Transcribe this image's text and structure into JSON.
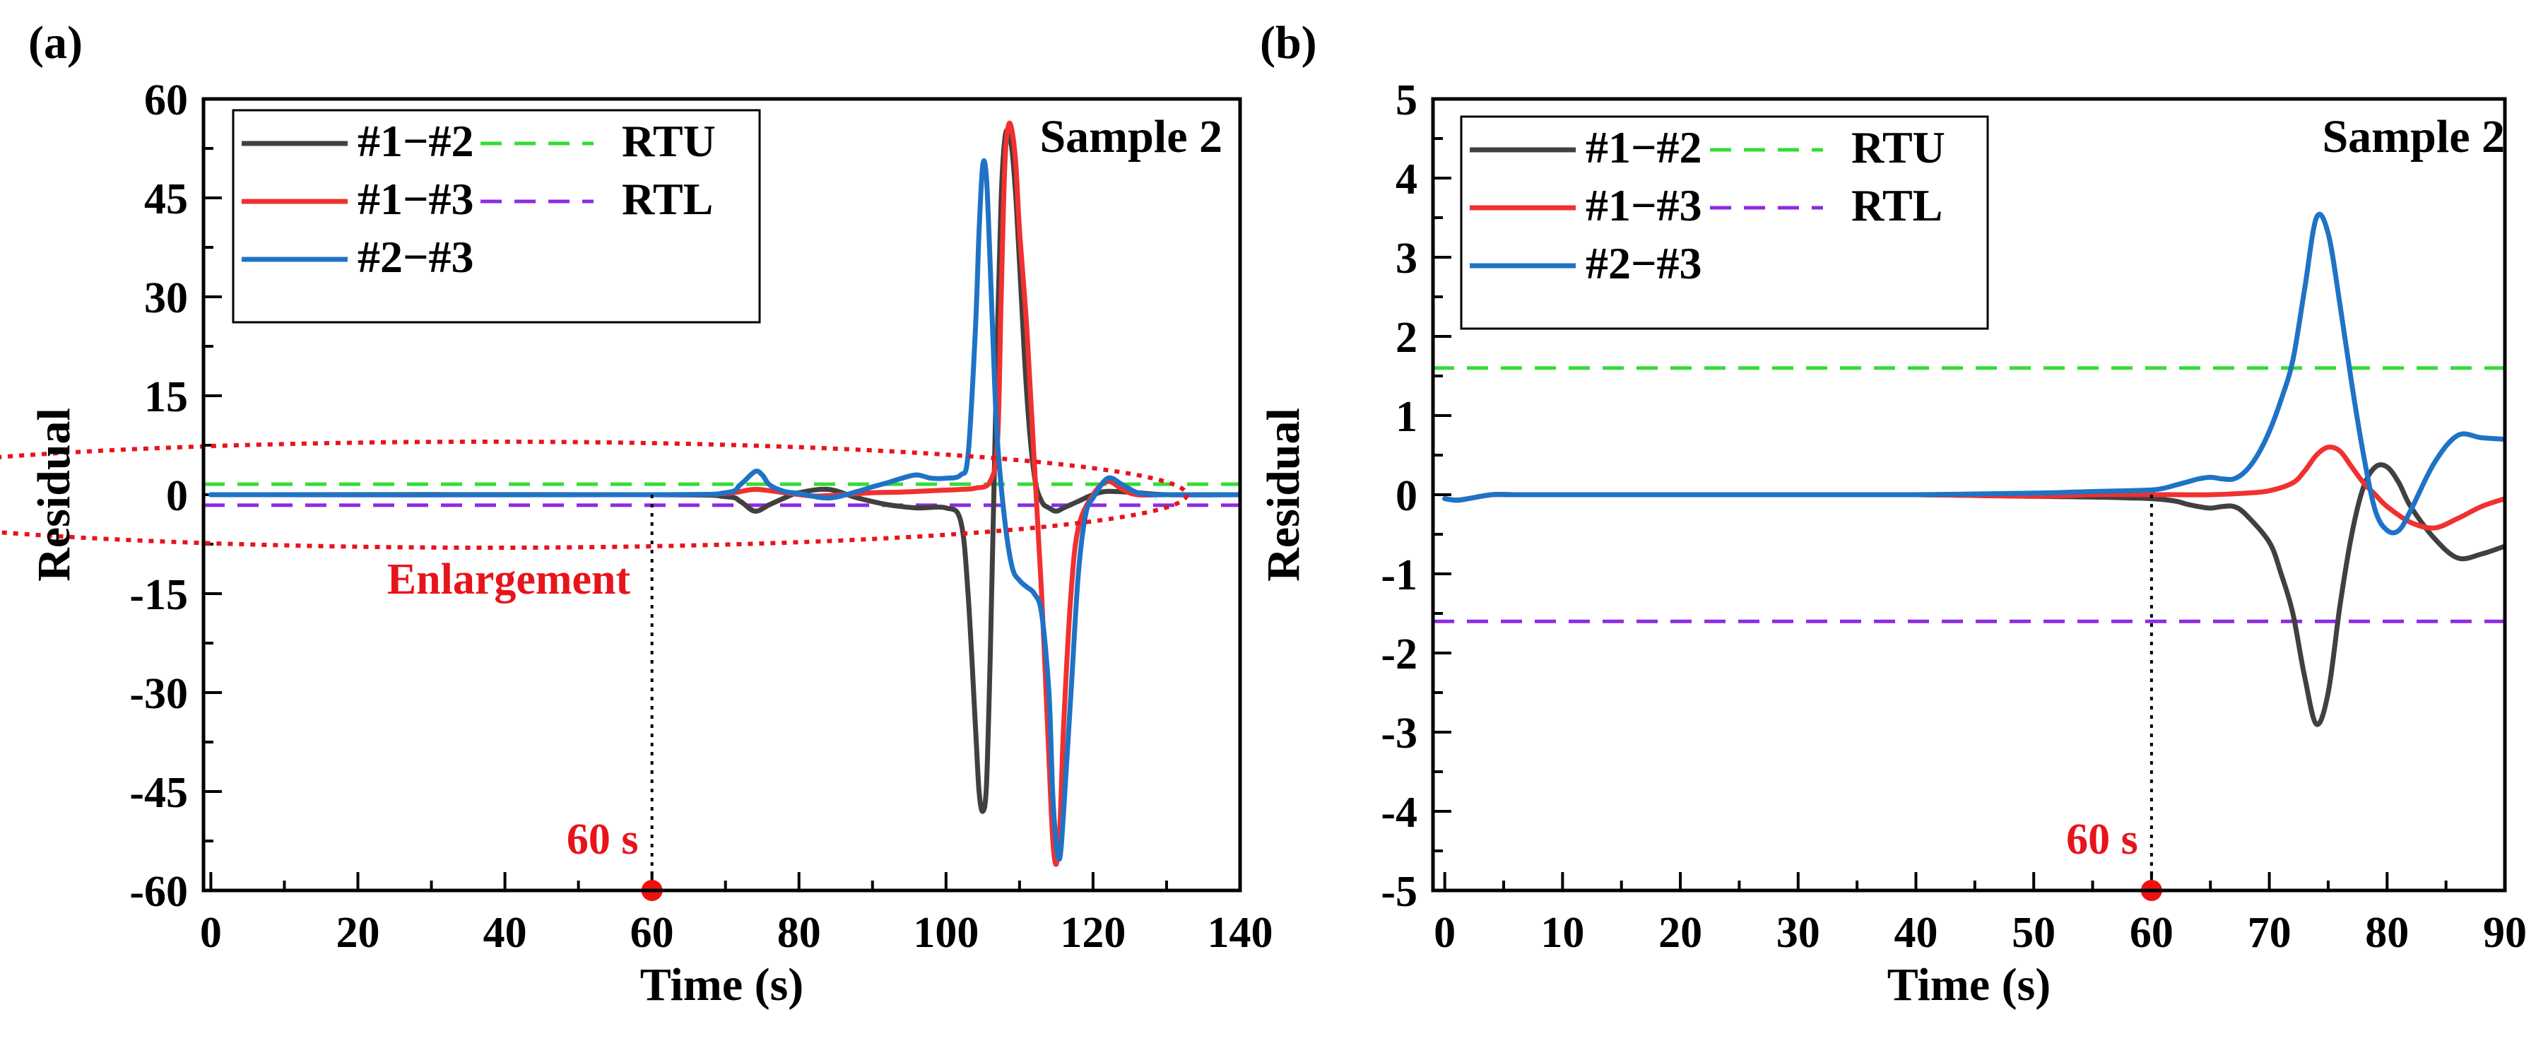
{
  "chart_data": [
    {
      "type": "line",
      "panel_label": "(a)",
      "title": "Sample 2",
      "xlabel": "Time (s)",
      "ylabel": "Residual",
      "xlim": [
        -1,
        140
      ],
      "ylim": [
        -60,
        60
      ],
      "xticks": [
        0,
        20,
        40,
        60,
        80,
        100,
        120,
        140
      ],
      "yticks": [
        60,
        45,
        30,
        15,
        0,
        -15,
        -30,
        -45,
        -60
      ],
      "tick_labels_x": [
        "0",
        "20",
        "40",
        "60",
        "80",
        "100",
        "120",
        "140"
      ],
      "tick_labels_y": [
        "60",
        "45",
        "30",
        "15",
        "0",
        "-15",
        "-30",
        "-45",
        "-60"
      ],
      "legend": [
        "#1−#2",
        "#1−#3",
        "#2−#3",
        "RTU",
        "RTL"
      ],
      "series": [
        {
          "name": "#1−#2",
          "color": "#404040",
          "x": [
            0,
            60,
            70,
            72,
            74,
            76,
            78,
            80,
            84,
            88,
            92,
            96,
            100,
            102,
            103,
            104,
            104.5,
            105,
            105.5,
            106,
            106.5,
            107,
            107.5,
            108,
            108.5,
            109,
            109.5,
            110,
            111,
            112,
            113,
            114,
            115,
            116,
            117,
            118,
            120,
            122,
            126,
            130,
            140
          ],
          "y": [
            0,
            0,
            -0.3,
            -1,
            -2.5,
            -1.5,
            -0.5,
            0.3,
            0.8,
            -0.5,
            -1.5,
            -2,
            -2,
            -4,
            -15,
            -35,
            -45,
            -48,
            -44,
            -25,
            0,
            25,
            45,
            54,
            55,
            52,
            45,
            35,
            15,
            3,
            -1,
            -2,
            -2.5,
            -2,
            -1.5,
            -1,
            0,
            0.5,
            0.3,
            0,
            0
          ]
        },
        {
          "name": "#1−#3",
          "color": "#f0312f",
          "x": [
            0,
            60,
            70,
            74,
            78,
            82,
            86,
            90,
            94,
            98,
            100,
            102,
            104,
            106,
            107,
            107.5,
            108,
            108.5,
            109,
            109.5,
            110,
            111,
            112,
            113,
            114,
            114.5,
            115,
            115.5,
            116,
            117,
            118,
            120,
            122,
            124,
            126,
            130,
            140
          ],
          "y": [
            0,
            0,
            0.2,
            0.8,
            0.3,
            -0.2,
            0,
            0.3,
            0.4,
            0.6,
            0.7,
            0.8,
            1,
            2,
            8,
            30,
            50,
            56,
            55,
            50,
            40,
            25,
            5,
            -15,
            -40,
            -52,
            -56,
            -50,
            -35,
            -15,
            -5,
            0,
            2,
            0.8,
            0,
            0,
            0
          ]
        },
        {
          "name": "#2−#3",
          "color": "#1e73c6",
          "x": [
            0,
            60,
            70,
            72,
            74,
            75,
            76,
            78,
            80,
            84,
            88,
            90,
            92,
            94,
            96,
            98,
            100,
            102,
            103,
            104,
            104.5,
            105,
            105.5,
            106,
            106.5,
            107,
            108,
            109,
            110,
            111,
            112,
            113,
            114,
            114.5,
            115,
            115.5,
            116,
            117,
            118,
            119,
            120,
            122,
            124,
            126,
            128,
            130,
            140
          ],
          "y": [
            0,
            0,
            0.3,
            1.5,
            3.5,
            3,
            1.5,
            0.5,
            0.2,
            -0.5,
            0.5,
            1.2,
            1.8,
            2.5,
            3,
            2.5,
            2.5,
            3,
            6,
            25,
            40,
            50,
            48,
            35,
            20,
            8,
            -4,
            -11,
            -13,
            -14,
            -15,
            -18,
            -30,
            -45,
            -53,
            -55,
            -48,
            -30,
            -12,
            -3,
            -0.5,
            2.5,
            1.5,
            0.3,
            0,
            0,
            0
          ]
        },
        {
          "name": "RTU",
          "color": "#33dd33",
          "dashed": true,
          "x": [
            -1,
            140
          ],
          "y": [
            1.6,
            1.6
          ]
        },
        {
          "name": "RTL",
          "color": "#8d2be2",
          "dashed": true,
          "x": [
            -1,
            140
          ],
          "y": [
            -1.6,
            -1.6
          ]
        }
      ],
      "annotations": {
        "marker_label": "60 s",
        "marker_x": 60,
        "ellipse_label": "Enlargement"
      }
    },
    {
      "type": "line",
      "panel_label": "(b)",
      "title": "Sample 2",
      "xlabel": "Time (s)",
      "ylabel": "Residual",
      "xlim": [
        -1,
        90
      ],
      "ylim": [
        -5,
        5
      ],
      "xticks": [
        0,
        10,
        20,
        30,
        40,
        50,
        60,
        70,
        80,
        90
      ],
      "yticks": [
        5,
        4,
        3,
        2,
        1,
        0,
        -1,
        -2,
        -3,
        -4,
        -5
      ],
      "tick_labels_x": [
        "0",
        "10",
        "20",
        "30",
        "40",
        "50",
        "60",
        "70",
        "80",
        "90"
      ],
      "tick_labels_y": [
        "5",
        "4",
        "3",
        "2",
        "1",
        "0",
        "-1",
        "-2",
        "-3",
        "-4",
        "-5"
      ],
      "legend": [
        "#1−#2",
        "#1−#3",
        "#2−#3",
        "RTU",
        "RTL"
      ],
      "series": [
        {
          "name": "#1−#2",
          "color": "#404040",
          "x": [
            0,
            1,
            2,
            4,
            6,
            10,
            20,
            30,
            40,
            50,
            55,
            58,
            60,
            62,
            63,
            64,
            65,
            66,
            67,
            68,
            70,
            71,
            72,
            73,
            74,
            75,
            76,
            77,
            78,
            79,
            80,
            81,
            82,
            84,
            86,
            88,
            90
          ],
          "y": [
            -0.05,
            -0.07,
            -0.05,
            0,
            0,
            0,
            0,
            0,
            0,
            -0.02,
            -0.03,
            -0.04,
            -0.05,
            -0.08,
            -0.12,
            -0.15,
            -0.17,
            -0.15,
            -0.15,
            -0.25,
            -0.6,
            -1,
            -1.5,
            -2.3,
            -2.9,
            -2.5,
            -1.4,
            -0.5,
            0.1,
            0.35,
            0.35,
            0.15,
            -0.15,
            -0.55,
            -0.8,
            -0.75,
            -0.65
          ]
        },
        {
          "name": "#1−#3",
          "color": "#f0312f",
          "x": [
            0,
            1,
            2,
            4,
            6,
            10,
            20,
            30,
            40,
            50,
            55,
            60,
            62,
            65,
            68,
            70,
            72,
            73,
            74,
            75,
            76,
            77,
            78,
            79,
            80,
            82,
            84,
            86,
            88,
            90
          ],
          "y": [
            -0.05,
            -0.07,
            -0.05,
            0,
            0,
            0,
            0,
            0,
            0,
            -0.02,
            0,
            0,
            0,
            0,
            0.02,
            0.05,
            0.15,
            0.3,
            0.5,
            0.6,
            0.55,
            0.35,
            0.15,
            0,
            -0.15,
            -0.35,
            -0.42,
            -0.3,
            -0.15,
            -0.05
          ]
        },
        {
          "name": "#2−#3",
          "color": "#1e73c6",
          "x": [
            0,
            1,
            2,
            4,
            6,
            10,
            20,
            30,
            40,
            50,
            55,
            58,
            60,
            61,
            62,
            63,
            64,
            65,
            66,
            67,
            68,
            69,
            70,
            71,
            72,
            73,
            74,
            75,
            76,
            77,
            78,
            79,
            80,
            81,
            82,
            84,
            86,
            88,
            90
          ],
          "y": [
            -0.05,
            -0.07,
            -0.05,
            0,
            0,
            0,
            0,
            0,
            0,
            0.02,
            0.04,
            0.05,
            0.06,
            0.08,
            0.12,
            0.16,
            0.2,
            0.22,
            0.2,
            0.2,
            0.3,
            0.5,
            0.8,
            1.2,
            1.7,
            2.6,
            3.5,
            3.3,
            2.4,
            1.4,
            0.5,
            -0.2,
            -0.45,
            -0.45,
            -0.2,
            0.4,
            0.75,
            0.72,
            0.7
          ]
        },
        {
          "name": "RTU",
          "color": "#33dd33",
          "dashed": true,
          "x": [
            -1,
            90
          ],
          "y": [
            1.6,
            1.6
          ]
        },
        {
          "name": "RTL",
          "color": "#8d2be2",
          "dashed": true,
          "x": [
            -1,
            90
          ],
          "y": [
            -1.6,
            -1.6
          ]
        }
      ],
      "annotations": {
        "marker_label": "60 s",
        "marker_x": 60
      }
    }
  ]
}
